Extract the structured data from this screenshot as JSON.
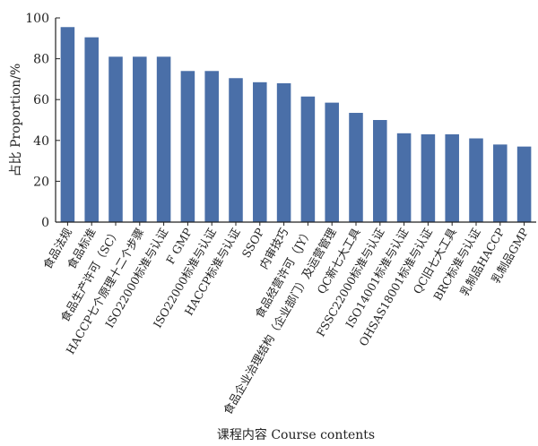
{
  "chart_data": {
    "type": "bar",
    "xlabel": "课程内容 Course contents",
    "ylabel": "占比 Proportion/%",
    "ylim": [
      0,
      100
    ],
    "yticks": [
      0,
      20,
      40,
      60,
      80,
      100
    ],
    "bar_color": "#4a6fa8",
    "grid": false,
    "categories": [
      "食品法规",
      "食品标准",
      "食品生产许可（SC）",
      "HACCP七个原理十二个步骤",
      "ISO22000标准与认证",
      "F GMP",
      "ISO22000标准与认证",
      "HACCP标准与认证",
      "SSOP",
      "内审技巧",
      "食品经营许可（JY）",
      "食品企业治理结构（企业部门）及运营管理",
      "QC新七大工具",
      "FSSC22000标准与认证",
      "ISO14001标准与认证",
      "OHSAS18001标准与认证",
      "QC旧七大工具",
      "BRC标准与认证",
      "乳制品HACCP",
      "乳制品GMP"
    ],
    "values": [
      95.5,
      90.5,
      81,
      81,
      81,
      74,
      74,
      70.5,
      68.5,
      68,
      61.5,
      58.5,
      53.5,
      50,
      43.5,
      43,
      43,
      41,
      38,
      37
    ]
  }
}
